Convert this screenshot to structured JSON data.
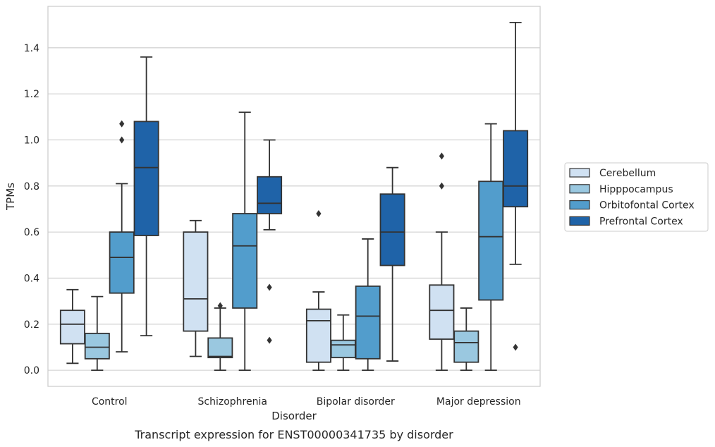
{
  "chart_data": {
    "type": "box",
    "xlabel": "Disorder",
    "ylabel": "TPMs",
    "caption": "Transcript expression for ENST00000341735 by disorder",
    "categories": [
      "Control",
      "Schizophrenia",
      "Bipolar disorder",
      "Major depression"
    ],
    "ylim": [
      -0.07,
      1.58
    ],
    "yticks": [
      0.0,
      0.2,
      0.4,
      0.6,
      0.8,
      1.0,
      1.2,
      1.4
    ],
    "ytick_labels": [
      "0.0",
      "0.2",
      "0.4",
      "0.6",
      "0.8",
      "1.0",
      "1.2",
      "1.4"
    ],
    "grid": true,
    "legend_position": "right",
    "series": [
      {
        "name": "Cerebellum",
        "color": "#d0e1f2",
        "boxes": [
          {
            "min": 0.03,
            "q1": 0.115,
            "median": 0.2,
            "q3": 0.26,
            "max": 0.35,
            "outliers": []
          },
          {
            "min": 0.06,
            "q1": 0.17,
            "median": 0.31,
            "q3": 0.6,
            "max": 0.65,
            "outliers": []
          },
          {
            "min": 0.0,
            "q1": 0.035,
            "median": 0.215,
            "q3": 0.265,
            "max": 0.34,
            "outliers": [
              0.68
            ]
          },
          {
            "min": 0.0,
            "q1": 0.135,
            "median": 0.26,
            "q3": 0.37,
            "max": 0.6,
            "outliers": [
              0.8,
              0.93
            ]
          }
        ]
      },
      {
        "name": "Hipppocampus",
        "color": "#9ac8e0",
        "boxes": [
          {
            "min": 0.0,
            "q1": 0.05,
            "median": 0.1,
            "q3": 0.16,
            "max": 0.32,
            "outliers": []
          },
          {
            "min": 0.0,
            "q1": 0.055,
            "median": 0.06,
            "q3": 0.14,
            "max": 0.27,
            "outliers": [
              0.28
            ]
          },
          {
            "min": 0.0,
            "q1": 0.055,
            "median": 0.11,
            "q3": 0.13,
            "max": 0.24,
            "outliers": []
          },
          {
            "min": 0.0,
            "q1": 0.035,
            "median": 0.12,
            "q3": 0.17,
            "max": 0.27,
            "outliers": []
          }
        ]
      },
      {
        "name": "Orbitofontal Cortex",
        "color": "#529dcc",
        "boxes": [
          {
            "min": 0.08,
            "q1": 0.335,
            "median": 0.49,
            "q3": 0.6,
            "max": 0.81,
            "outliers": [
              1.0,
              1.07
            ]
          },
          {
            "min": 0.0,
            "q1": 0.27,
            "median": 0.54,
            "q3": 0.68,
            "max": 1.12,
            "outliers": []
          },
          {
            "min": 0.0,
            "q1": 0.05,
            "median": 0.235,
            "q3": 0.365,
            "max": 0.57,
            "outliers": []
          },
          {
            "min": 0.0,
            "q1": 0.305,
            "median": 0.58,
            "q3": 0.82,
            "max": 1.07,
            "outliers": []
          }
        ]
      },
      {
        "name": "Prefrontal Cortex",
        "color": "#1f63a8",
        "boxes": [
          {
            "min": 0.15,
            "q1": 0.585,
            "median": 0.88,
            "q3": 1.08,
            "max": 1.36,
            "outliers": []
          },
          {
            "min": 0.61,
            "q1": 0.68,
            "median": 0.725,
            "q3": 0.84,
            "max": 1.0,
            "outliers": [
              0.36,
              0.13
            ]
          },
          {
            "min": 0.04,
            "q1": 0.455,
            "median": 0.6,
            "q3": 0.765,
            "max": 0.88,
            "outliers": []
          },
          {
            "min": 0.46,
            "q1": 0.71,
            "median": 0.8,
            "q3": 1.04,
            "max": 1.51,
            "outliers": [
              0.1
            ]
          }
        ]
      }
    ]
  }
}
